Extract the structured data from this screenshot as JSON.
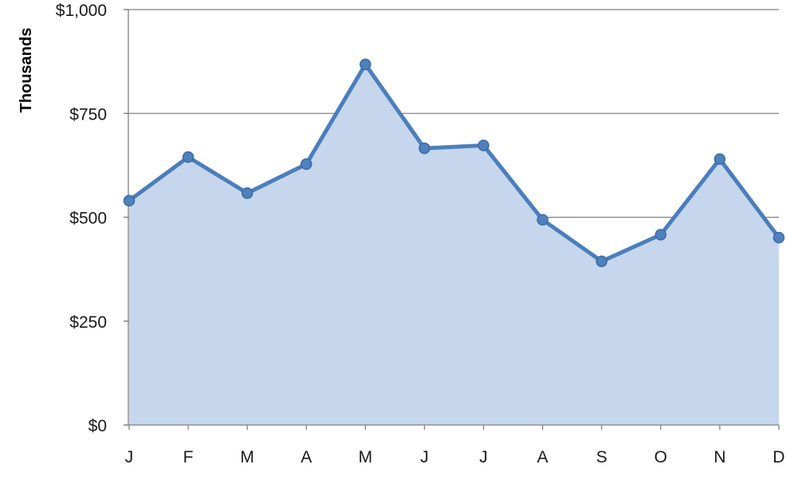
{
  "chart_data": {
    "type": "area",
    "title": "",
    "xlabel": "",
    "ylabel": "Thousands",
    "categories": [
      "J",
      "F",
      "M",
      "A",
      "M",
      "J",
      "J",
      "A",
      "S",
      "O",
      "N",
      "D"
    ],
    "series": [
      {
        "values": [
          540,
          645,
          558,
          628,
          868,
          666,
          673,
          494,
          394,
          458,
          640,
          451
        ]
      }
    ],
    "y_ticks": [
      {
        "value": 0,
        "label": "$0"
      },
      {
        "value": 250,
        "label": "$250"
      },
      {
        "value": 500,
        "label": "$500"
      },
      {
        "value": 750,
        "label": "$750"
      },
      {
        "value": 1000,
        "label": "$1,000"
      }
    ],
    "ylim": [
      0,
      1000
    ],
    "grid": true,
    "legend": "none",
    "colors": {
      "line": "#4a7ebb",
      "marker": "#4f81bd",
      "fill": "#c6d6ed",
      "grid": "#808080",
      "axis": "#808080"
    }
  }
}
